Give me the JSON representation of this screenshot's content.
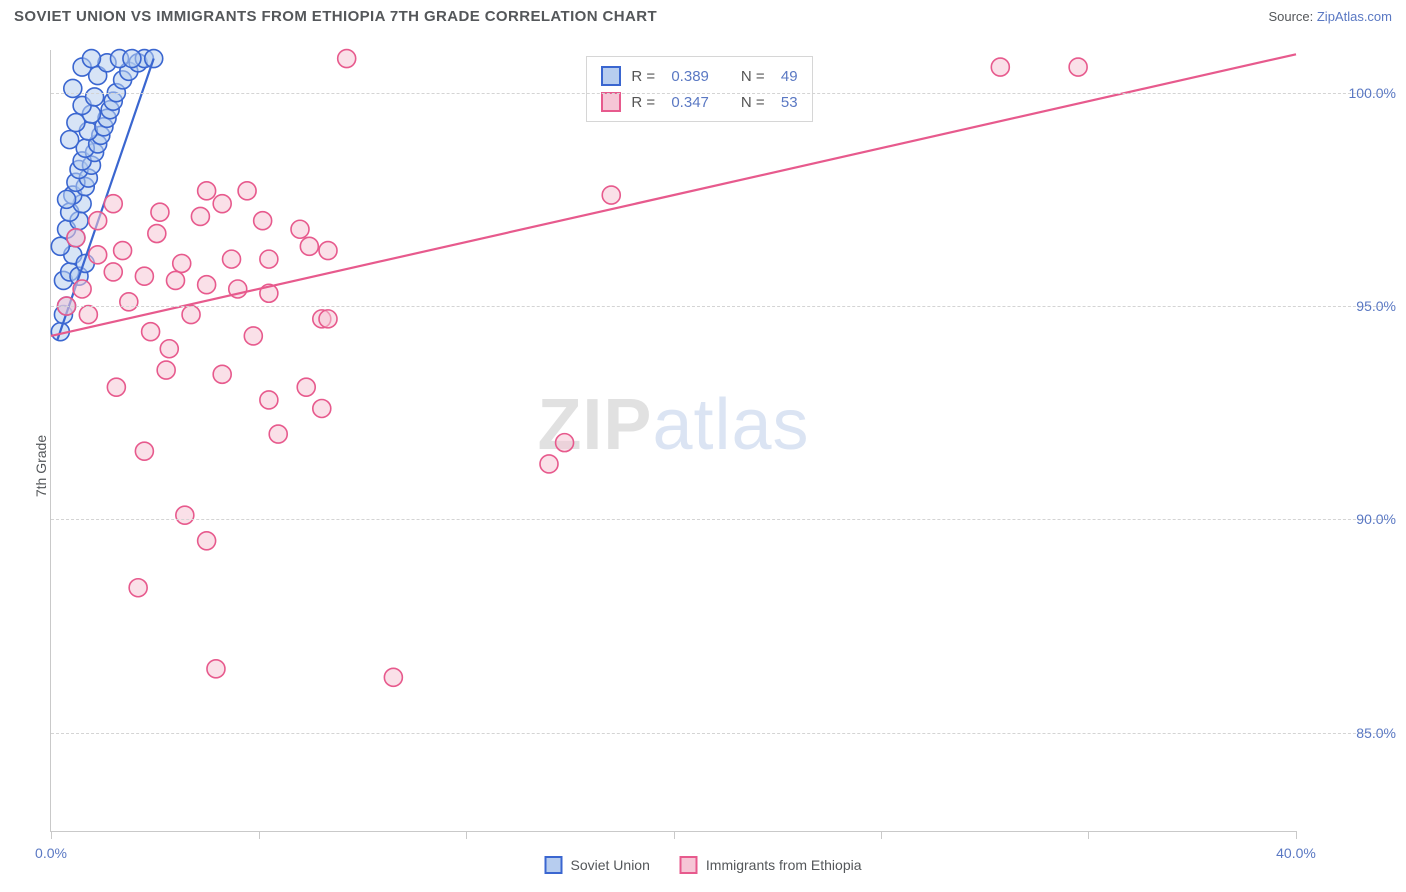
{
  "title": "SOVIET UNION VS IMMIGRANTS FROM ETHIOPIA 7TH GRADE CORRELATION CHART",
  "source_label": "Source: ",
  "source_name": "ZipAtlas.com",
  "yaxis_label": "7th Grade",
  "watermark_a": "ZIP",
  "watermark_b": "atlas",
  "chart": {
    "type": "scatter",
    "xlim": [
      0,
      40
    ],
    "ylim": [
      82.7,
      101.0
    ],
    "x_ticks": [
      0,
      20,
      40
    ],
    "x_tick_labels": [
      "0.0%",
      "",
      "40.0%"
    ],
    "x_minor_ticks": [
      6.67,
      13.33,
      26.67,
      33.33
    ],
    "y_ticks": [
      85.0,
      90.0,
      95.0,
      100.0
    ],
    "y_tick_labels": [
      "85.0%",
      "90.0%",
      "95.0%",
      "100.0%"
    ],
    "grid_color": "#d4d4d4",
    "axis_color": "#c9c9c9",
    "background_color": "#ffffff",
    "marker_radius": 9,
    "marker_stroke_width": 1.6,
    "trend_line_width": 2.2,
    "series": [
      {
        "name": "Soviet Union",
        "fill": "#b7cdef",
        "stroke": "#3a66d0",
        "fill_opacity": 0.55,
        "R": "0.389",
        "N": "49",
        "trend": {
          "x1": 0.2,
          "y1": 94.2,
          "x2": 3.3,
          "y2": 100.8
        },
        "points": [
          [
            0.3,
            94.4
          ],
          [
            0.4,
            94.8
          ],
          [
            0.5,
            95.0
          ],
          [
            0.4,
            95.6
          ],
          [
            0.6,
            95.8
          ],
          [
            0.7,
            96.2
          ],
          [
            0.3,
            96.4
          ],
          [
            0.8,
            96.6
          ],
          [
            0.5,
            96.8
          ],
          [
            0.9,
            97.0
          ],
          [
            0.6,
            97.2
          ],
          [
            1.0,
            97.4
          ],
          [
            0.7,
            97.6
          ],
          [
            1.1,
            97.8
          ],
          [
            0.8,
            97.9
          ],
          [
            1.2,
            98.0
          ],
          [
            0.9,
            98.2
          ],
          [
            1.3,
            98.3
          ],
          [
            1.0,
            98.4
          ],
          [
            1.4,
            98.6
          ],
          [
            1.1,
            98.7
          ],
          [
            1.5,
            98.8
          ],
          [
            0.6,
            98.9
          ],
          [
            1.6,
            99.0
          ],
          [
            1.2,
            99.1
          ],
          [
            1.7,
            99.2
          ],
          [
            0.8,
            99.3
          ],
          [
            1.8,
            99.4
          ],
          [
            1.3,
            99.5
          ],
          [
            1.9,
            99.6
          ],
          [
            1.0,
            99.7
          ],
          [
            2.0,
            99.8
          ],
          [
            1.4,
            99.9
          ],
          [
            2.1,
            100.0
          ],
          [
            0.7,
            100.1
          ],
          [
            2.3,
            100.3
          ],
          [
            1.5,
            100.4
          ],
          [
            2.5,
            100.5
          ],
          [
            1.0,
            100.6
          ],
          [
            2.8,
            100.7
          ],
          [
            1.8,
            100.7
          ],
          [
            3.0,
            100.8
          ],
          [
            2.2,
            100.8
          ],
          [
            3.3,
            100.8
          ],
          [
            2.6,
            100.8
          ],
          [
            1.3,
            100.8
          ],
          [
            0.9,
            95.7
          ],
          [
            0.5,
            97.5
          ],
          [
            1.1,
            96.0
          ]
        ]
      },
      {
        "name": "Immigants from Ethiopia",
        "label": "Immigrants from Ethiopia",
        "fill": "#f6c6d6",
        "stroke": "#e75a8d",
        "fill_opacity": 0.55,
        "R": "0.347",
        "N": "53",
        "trend": {
          "x1": 0.0,
          "y1": 94.3,
          "x2": 40.0,
          "y2": 100.9
        },
        "points": [
          [
            9.5,
            100.8
          ],
          [
            30.5,
            100.6
          ],
          [
            33.0,
            100.6
          ],
          [
            18.0,
            97.6
          ],
          [
            5.0,
            97.7
          ],
          [
            6.3,
            97.7
          ],
          [
            3.5,
            97.2
          ],
          [
            8.0,
            96.8
          ],
          [
            8.3,
            96.4
          ],
          [
            8.9,
            96.3
          ],
          [
            7.0,
            96.1
          ],
          [
            5.8,
            96.1
          ],
          [
            4.2,
            96.0
          ],
          [
            1.5,
            96.2
          ],
          [
            2.0,
            95.8
          ],
          [
            2.3,
            96.3
          ],
          [
            3.0,
            95.7
          ],
          [
            4.0,
            95.6
          ],
          [
            5.0,
            95.5
          ],
          [
            6.0,
            95.4
          ],
          [
            7.0,
            95.3
          ],
          [
            2.5,
            95.1
          ],
          [
            4.5,
            94.8
          ],
          [
            8.7,
            94.7
          ],
          [
            8.9,
            94.7
          ],
          [
            6.5,
            94.3
          ],
          [
            3.8,
            94.0
          ],
          [
            5.5,
            93.4
          ],
          [
            8.2,
            93.1
          ],
          [
            7.0,
            92.8
          ],
          [
            8.7,
            92.6
          ],
          [
            7.3,
            92.0
          ],
          [
            3.0,
            91.6
          ],
          [
            4.3,
            90.1
          ],
          [
            5.0,
            89.5
          ],
          [
            2.8,
            88.4
          ],
          [
            5.3,
            86.5
          ],
          [
            11.0,
            86.3
          ],
          [
            16.0,
            91.3
          ],
          [
            16.5,
            91.8
          ],
          [
            1.2,
            94.8
          ],
          [
            1.0,
            95.4
          ],
          [
            0.8,
            96.6
          ],
          [
            1.5,
            97.0
          ],
          [
            2.0,
            97.4
          ],
          [
            0.5,
            95.0
          ],
          [
            3.2,
            94.4
          ],
          [
            6.8,
            97.0
          ],
          [
            5.5,
            97.4
          ],
          [
            4.8,
            97.1
          ],
          [
            3.7,
            93.5
          ],
          [
            2.1,
            93.1
          ],
          [
            3.4,
            96.7
          ]
        ]
      }
    ]
  },
  "stats_legend": {
    "r_label": "R =",
    "n_label": "N ="
  },
  "footer_legend": [
    {
      "label": "Soviet Union",
      "fill": "#b7cdef",
      "stroke": "#3a66d0"
    },
    {
      "label": "Immigrants from Ethiopia",
      "fill": "#f6c6d6",
      "stroke": "#e75a8d"
    }
  ]
}
